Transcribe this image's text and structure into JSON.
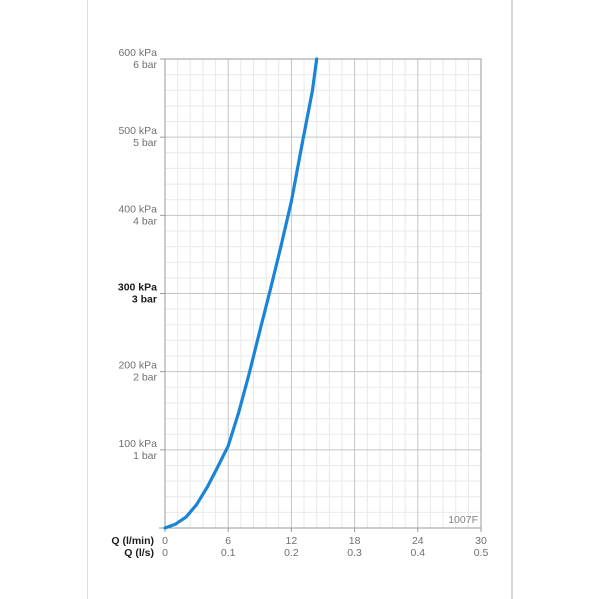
{
  "chart_data": {
    "type": "line",
    "x_primary": {
      "label": "Q (l/min)",
      "ticks": [
        0,
        6,
        12,
        18,
        24,
        30
      ],
      "tick_labels": [
        "0",
        "6",
        "12",
        "18",
        "24",
        "30"
      ],
      "range": [
        0,
        30
      ]
    },
    "x_secondary": {
      "label": "Q (l/s)",
      "tick_labels": [
        "0",
        "0.1",
        "0.2",
        "0.3",
        "0.4",
        "0.5"
      ]
    },
    "y": {
      "ticks": [
        100,
        200,
        300,
        400,
        500,
        600
      ],
      "tick_labels_kpa": [
        "100 kPa",
        "200 kPa",
        "300 kPa",
        "400 kPa",
        "500 kPa",
        "600 kPa"
      ],
      "tick_labels_bar": [
        "1 bar",
        "2 bar",
        "3 bar",
        "4 bar",
        "5 bar",
        "6 bar"
      ],
      "highlight_tick": 300,
      "range": [
        0,
        600
      ]
    },
    "grid": true,
    "code": "1007F",
    "series": [
      {
        "color": "#1a84d6",
        "x": [
          0,
          1,
          2,
          3,
          4,
          5,
          6,
          7,
          8,
          9,
          10,
          11,
          12,
          13,
          14,
          14.4
        ],
        "y": [
          0,
          5,
          14,
          30,
          52,
          78,
          105,
          148,
          198,
          252,
          305,
          360,
          418,
          490,
          560,
          600
        ]
      }
    ]
  }
}
